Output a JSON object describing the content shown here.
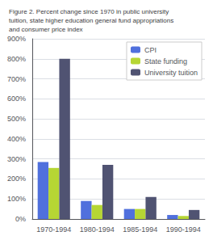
{
  "chart_data": {
    "type": "bar",
    "title": "Figure 2. Percent change since 1970 in public university\ntuition, state higher education general fund appropriations\nand consumer price index",
    "categories": [
      "1970-1994",
      "1980-1994",
      "1985-1994",
      "1990-1994"
    ],
    "series": [
      {
        "name": "CPI",
        "values": [
          285,
          90,
          50,
          20
        ]
      },
      {
        "name": "State funding",
        "values": [
          255,
          70,
          50,
          15
        ]
      },
      {
        "name": "University tuition",
        "values": [
          800,
          270,
          110,
          45
        ]
      }
    ],
    "ylim": [
      0,
      900
    ],
    "yticks": [
      {
        "value": 0,
        "label": "0%"
      },
      {
        "value": 100,
        "label": "100%"
      },
      {
        "value": 200,
        "label": "200%"
      },
      {
        "value": 300,
        "label": "300%"
      },
      {
        "value": 400,
        "label": "400%"
      },
      {
        "value": 500,
        "label": "500%"
      },
      {
        "value": 600,
        "label": "600%"
      },
      {
        "value": 700,
        "label": "700%"
      },
      {
        "value": 800,
        "label": "800%"
      },
      {
        "value": 900,
        "label": "900%"
      }
    ],
    "grid": true,
    "legend": "upper right"
  }
}
